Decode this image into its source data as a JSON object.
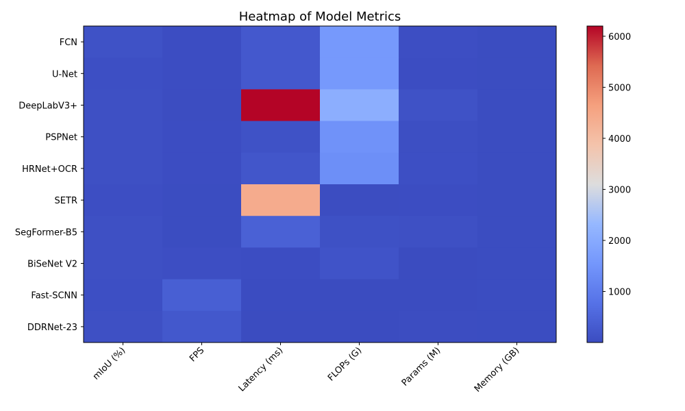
{
  "chart_data": {
    "type": "heatmap",
    "title": "Heatmap of Model Metrics",
    "rows": [
      "FCN",
      "U-Net",
      "DeepLabV3+",
      "PSPNet",
      "HRNet+OCR",
      "SETR",
      "SegFormer-B5",
      "BiSeNet V2",
      "Fast-SCNN",
      "DDRNet-23"
    ],
    "columns": [
      "mIoU (%)",
      "FPS",
      "Latency (ms)",
      "FLOPs (G)",
      "Params (M)",
      "Memory (GB)"
    ],
    "values": [
      [
        120,
        30,
        250,
        1600,
        50,
        12
      ],
      [
        70,
        30,
        250,
        1600,
        30,
        12
      ],
      [
        80,
        20,
        6200,
        2100,
        120,
        12
      ],
      [
        80,
        30,
        120,
        1450,
        60,
        12
      ],
      [
        80,
        30,
        200,
        1380,
        70,
        12
      ],
      [
        50,
        12,
        4400,
        15,
        30,
        12
      ],
      [
        80,
        12,
        420,
        100,
        80,
        12
      ],
      [
        75,
        50,
        30,
        150,
        5,
        12
      ],
      [
        70,
        380,
        10,
        3,
        2,
        12
      ],
      [
        80,
        240,
        5,
        2,
        20,
        12
      ]
    ],
    "colorbar": {
      "min": 0,
      "max": 6200,
      "ticks": [
        1000,
        2000,
        3000,
        4000,
        5000,
        6000
      ],
      "colormap": "coolwarm"
    },
    "grid": false
  }
}
